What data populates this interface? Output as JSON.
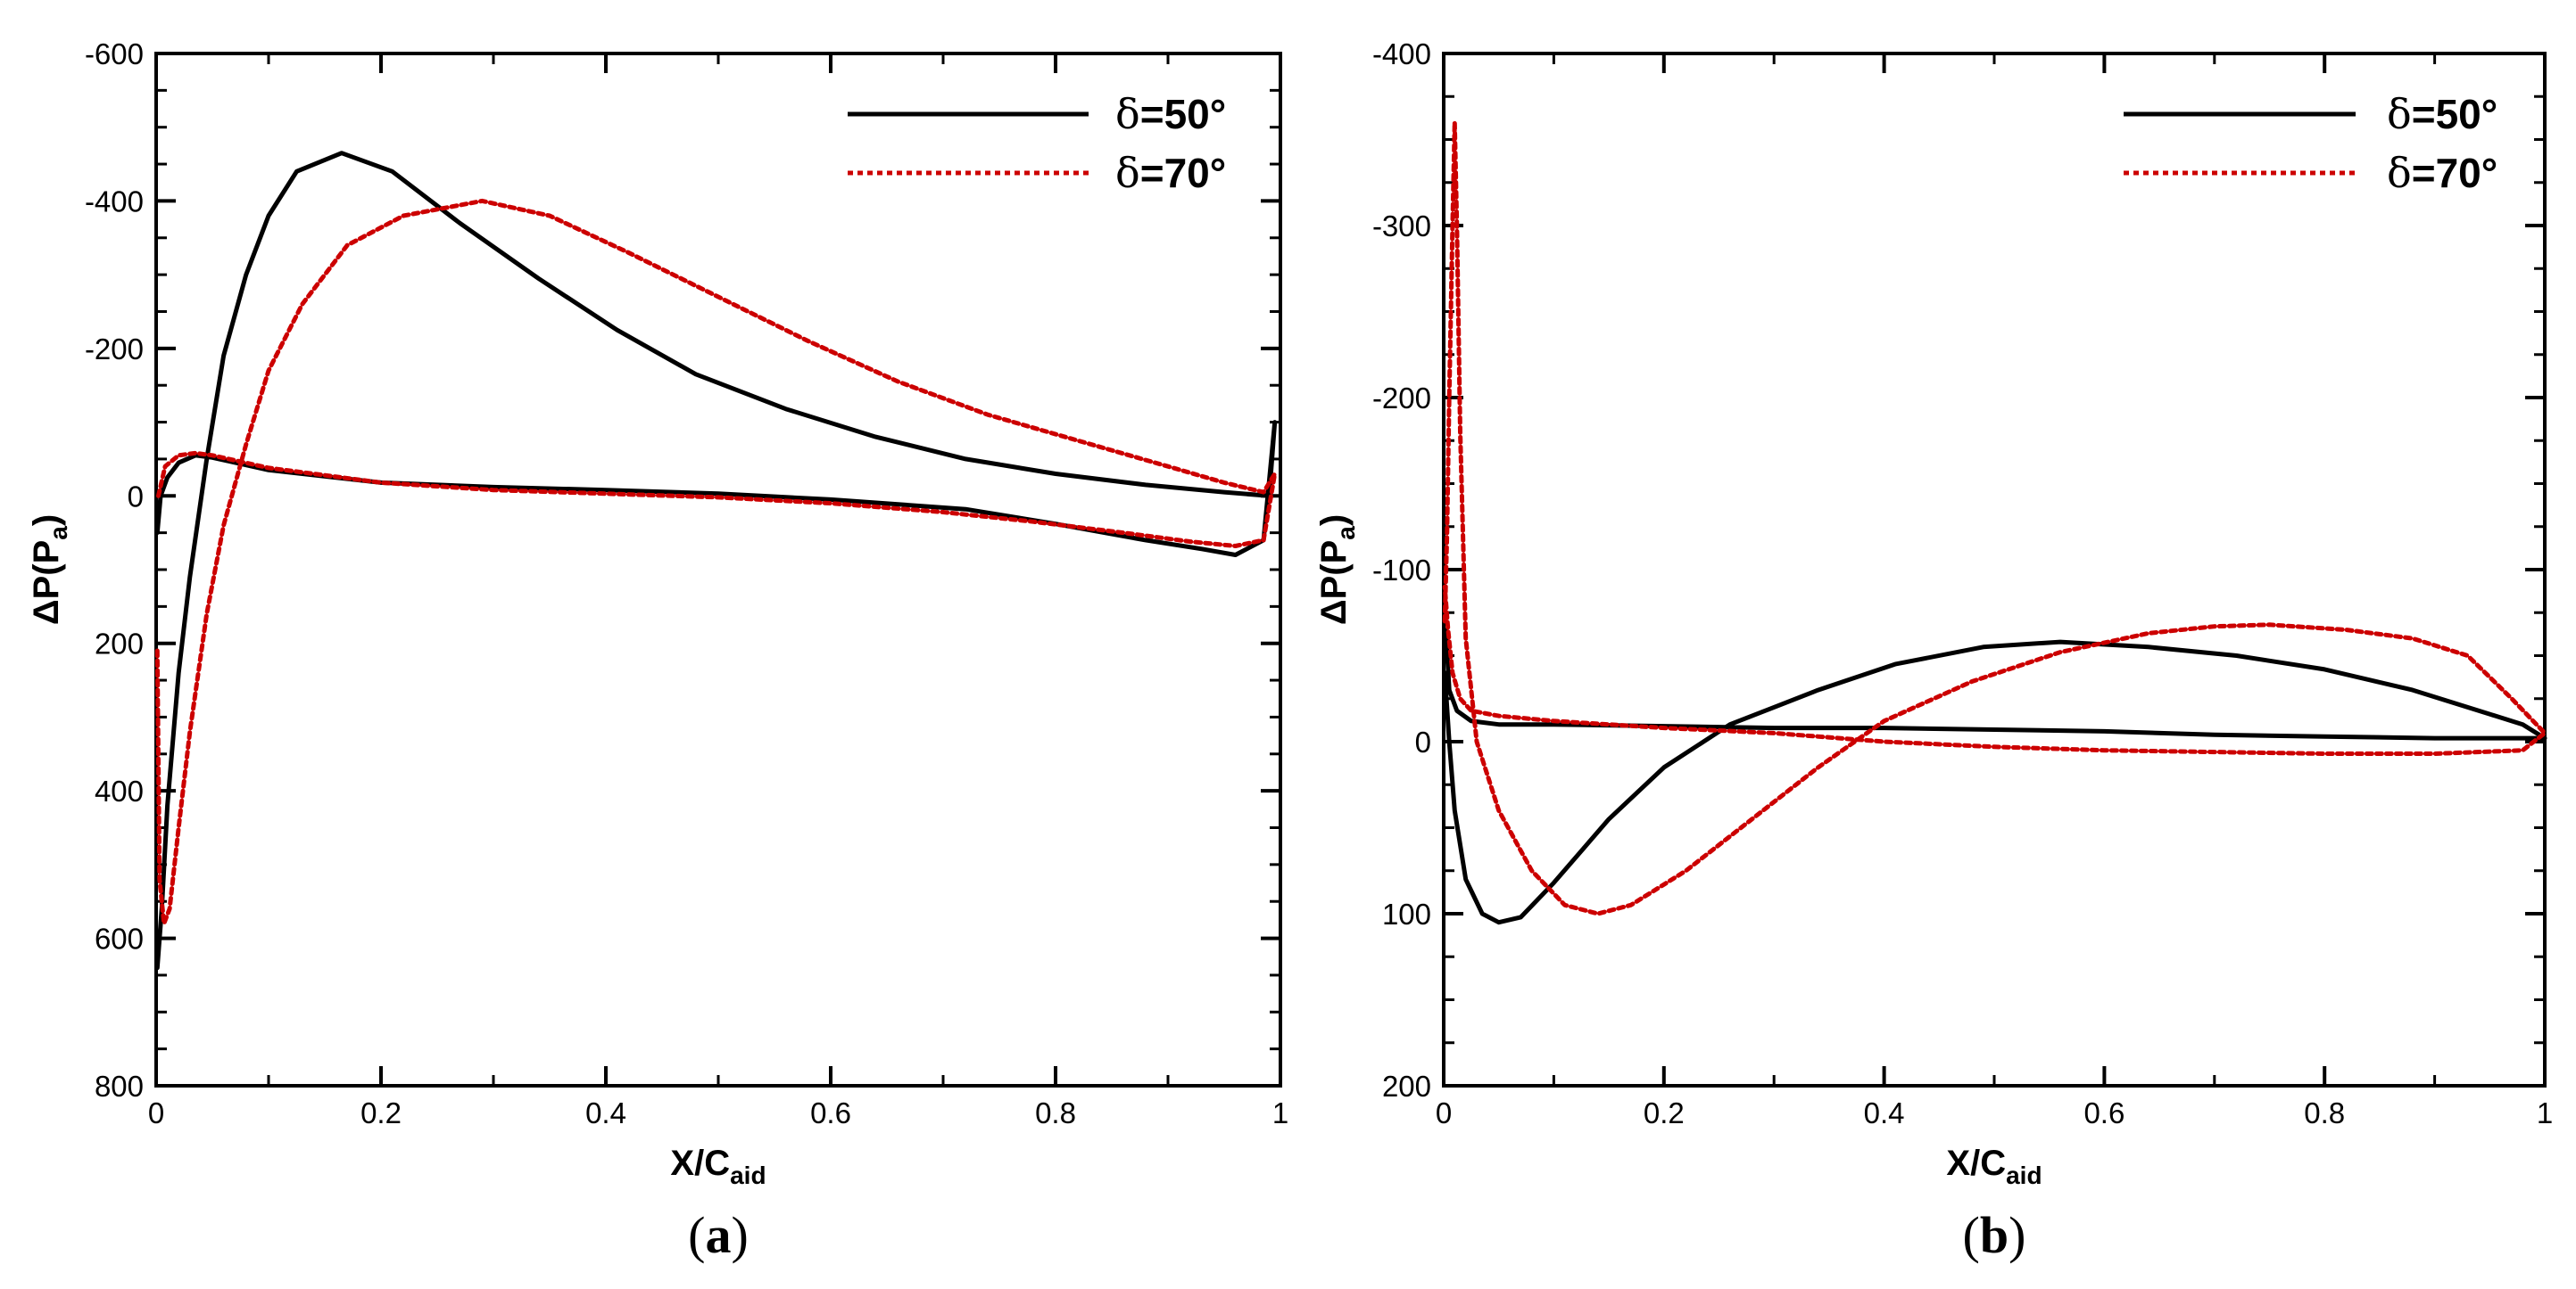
{
  "chart_data": [
    {
      "type": "line",
      "panel": "a",
      "panel_label_open": "(",
      "panel_label": "a",
      "panel_label_close": ")",
      "xlabel": "X/C",
      "xlabel_sub": "aid",
      "ylabel": "ΔP(P",
      "ylabel_sub": "a",
      "ylabel_close": ")",
      "xlim": [
        0,
        1
      ],
      "ylim": [
        800,
        -600
      ],
      "xticks": [
        0,
        0.2,
        0.4,
        0.6,
        0.8,
        1
      ],
      "xtick_labels": [
        "0",
        "0.2",
        "0.4",
        "0.6",
        "0.8",
        "1"
      ],
      "yticks": [
        -600,
        -400,
        -200,
        0,
        200,
        400,
        600,
        800
      ],
      "ytick_labels": [
        "-600",
        "-400",
        "-200",
        "0",
        "200",
        "400",
        "600",
        "800"
      ],
      "legend_position": "top-right",
      "series": [
        {
          "name": "δ=50°",
          "legend_symbol": "δ",
          "legend_text": "=50°",
          "color": "#000000",
          "style": "solid",
          "x": [
            0.001,
            0.005,
            0.01,
            0.02,
            0.03,
            0.045,
            0.06,
            0.08,
            0.1,
            0.125,
            0.165,
            0.21,
            0.27,
            0.34,
            0.41,
            0.48,
            0.56,
            0.64,
            0.72,
            0.8,
            0.88,
            0.95,
            0.99,
            0.995,
            0.985,
            0.96,
            0.93,
            0.88,
            0.8,
            0.72,
            0.6,
            0.5,
            0.4,
            0.3,
            0.2,
            0.1,
            0.05,
            0.035,
            0.02,
            0.01,
            0.004,
            0.001
          ],
          "y": [
            640,
            560,
            420,
            240,
            110,
            -50,
            -190,
            -300,
            -380,
            -440,
            -465,
            -440,
            -370,
            -295,
            -225,
            -165,
            -118,
            -80,
            -50,
            -30,
            -15,
            -5,
            0,
            -100,
            60,
            80,
            72,
            60,
            38,
            18,
            5,
            -3,
            -8,
            -12,
            -18,
            -35,
            -52,
            -55,
            -45,
            -25,
            0,
            50
          ],
          "series_x_display": "0.001 → 1 → 0.001"
        },
        {
          "name": "δ=70°",
          "legend_symbol": "δ",
          "legend_text": "=70°",
          "color": "#cc0000",
          "style": "dotted",
          "x": [
            0.001,
            0.003,
            0.007,
            0.012,
            0.02,
            0.03,
            0.045,
            0.06,
            0.08,
            0.1,
            0.13,
            0.17,
            0.22,
            0.29,
            0.35,
            0.42,
            0.5,
            0.58,
            0.66,
            0.74,
            0.82,
            0.9,
            0.95,
            0.985,
            0.995,
            0.985,
            0.96,
            0.92,
            0.86,
            0.78,
            0.7,
            0.6,
            0.5,
            0.4,
            0.3,
            0.2,
            0.1,
            0.05,
            0.035,
            0.02,
            0.008,
            0.002
          ],
          "y": [
            210,
            520,
            580,
            560,
            450,
            320,
            160,
            40,
            -70,
            -170,
            -260,
            -340,
            -380,
            -400,
            -380,
            -330,
            -270,
            -210,
            -155,
            -110,
            -75,
            -40,
            -18,
            -5,
            -30,
            60,
            68,
            62,
            50,
            35,
            22,
            10,
            2,
            -3,
            -8,
            -18,
            -38,
            -55,
            -58,
            -55,
            -40,
            0
          ],
          "series_x_display": "0.001 → 1 → 0.002"
        }
      ]
    },
    {
      "type": "line",
      "panel": "b",
      "panel_label_open": "(",
      "panel_label": "b",
      "panel_label_close": ")",
      "xlabel": "X/C",
      "xlabel_sub": "aid",
      "ylabel": "ΔP(P",
      "ylabel_sub": "a",
      "ylabel_close": ")",
      "xlim": [
        0,
        1
      ],
      "ylim": [
        200,
        -400
      ],
      "xticks": [
        0,
        0.2,
        0.4,
        0.6,
        0.8,
        1
      ],
      "xtick_labels": [
        "0",
        "0.2",
        "0.4",
        "0.6",
        "0.8",
        "1"
      ],
      "yticks": [
        -400,
        -300,
        -200,
        -100,
        0,
        100,
        200
      ],
      "ytick_labels": [
        "-400",
        "-300",
        "-200",
        "-100",
        "0",
        "100",
        "200"
      ],
      "legend_position": "top-right",
      "series": [
        {
          "name": "δ=50°",
          "legend_symbol": "δ",
          "legend_text": "=50°",
          "color": "#000000",
          "style": "solid",
          "x": [
            0.001,
            0.005,
            0.01,
            0.02,
            0.035,
            0.05,
            0.07,
            0.1,
            0.15,
            0.2,
            0.26,
            0.3,
            0.34,
            0.41,
            0.49,
            0.56,
            0.64,
            0.72,
            0.8,
            0.88,
            0.95,
            0.98,
            1.0,
            0.9,
            0.8,
            0.7,
            0.6,
            0.5,
            0.4,
            0.3,
            0.2,
            0.1,
            0.05,
            0.025,
            0.012,
            0.005,
            0.002
          ],
          "y": [
            -40,
            0,
            40,
            80,
            100,
            105,
            102,
            82,
            45,
            15,
            -10,
            -20,
            -30,
            -45,
            -55,
            -58,
            -55,
            -50,
            -42,
            -30,
            -16,
            -10,
            -2,
            -2,
            -3,
            -4,
            -6,
            -7,
            -8,
            -8,
            -9,
            -10,
            -10,
            -12,
            -18,
            -30,
            -65
          ],
          "series_x_display": "0.001 → 1 → 0.002"
        },
        {
          "name": "δ=70°",
          "legend_symbol": "δ",
          "legend_text": "=70°",
          "color": "#cc0000",
          "style": "dotted",
          "x": [
            0.001,
            0.003,
            0.005,
            0.008,
            0.01,
            0.012,
            0.015,
            0.02,
            0.03,
            0.05,
            0.08,
            0.11,
            0.14,
            0.17,
            0.22,
            0.28,
            0.34,
            0.4,
            0.48,
            0.56,
            0.64,
            0.7,
            0.75,
            0.82,
            0.88,
            0.93,
            0.97,
            1.0,
            0.98,
            0.9,
            0.8,
            0.7,
            0.6,
            0.5,
            0.4,
            0.3,
            0.2,
            0.1,
            0.05,
            0.025,
            0.015,
            0.008,
            0.004,
            0.001
          ],
          "y": [
            -70,
            -120,
            -200,
            -300,
            -360,
            -300,
            -180,
            -60,
            0,
            40,
            75,
            95,
            100,
            95,
            75,
            45,
            15,
            -12,
            -35,
            -52,
            -63,
            -67,
            -68,
            -65,
            -60,
            -50,
            -25,
            -5,
            5,
            7,
            7,
            6,
            5,
            3,
            0,
            -5,
            -8,
            -12,
            -15,
            -18,
            -25,
            -40,
            -65,
            -90
          ],
          "series_x_display": "0.001 → 1 → 0.001"
        }
      ]
    }
  ]
}
